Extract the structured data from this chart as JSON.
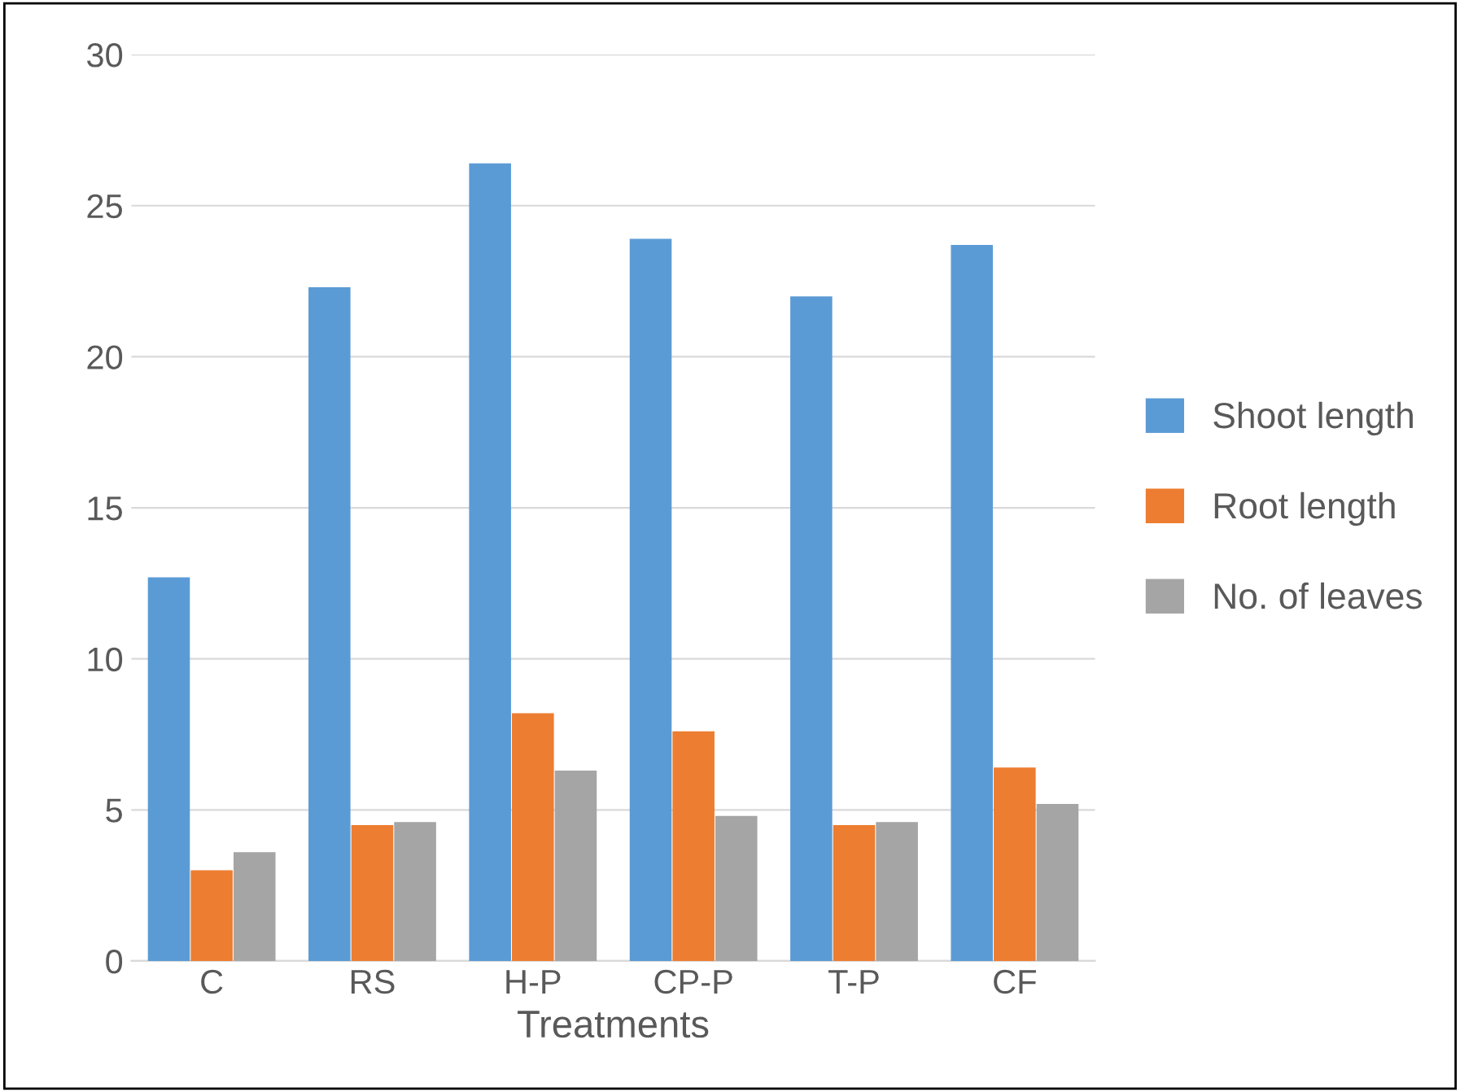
{
  "chart_data": {
    "type": "bar",
    "xlabel": "Treatments",
    "categories": [
      "C",
      "RS",
      "H-P",
      "CP-P",
      "T-P",
      "CF"
    ],
    "series": [
      {
        "name": "Shoot length",
        "color": "#5b9bd5",
        "values": [
          12.7,
          22.3,
          26.4,
          23.9,
          22.0,
          23.7
        ]
      },
      {
        "name": "Root length",
        "color": "#ed7d31",
        "values": [
          3.0,
          4.5,
          8.2,
          7.6,
          4.5,
          6.4
        ]
      },
      {
        "name": "No. of leaves",
        "color": "#a5a5a5",
        "values": [
          3.6,
          4.6,
          6.3,
          4.8,
          4.6,
          5.2
        ]
      }
    ],
    "ylim": [
      0,
      30
    ],
    "yticks": [
      0,
      5,
      10,
      15,
      20,
      25,
      30
    ],
    "grid": "y",
    "legend": "right"
  }
}
